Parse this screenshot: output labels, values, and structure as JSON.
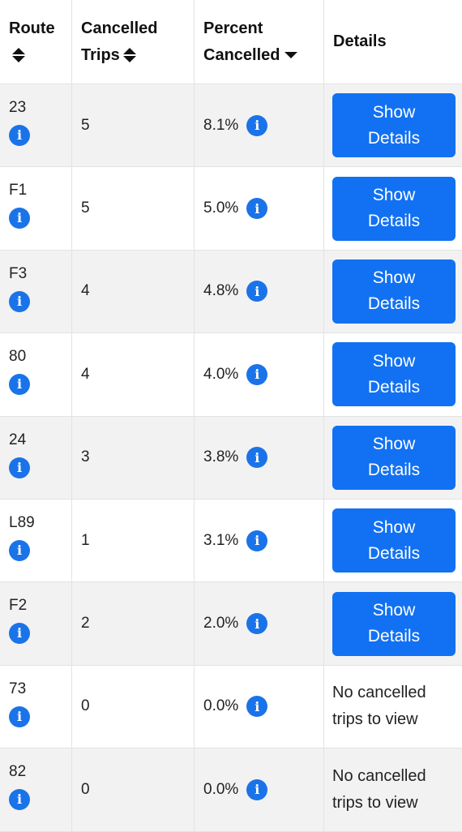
{
  "header": {
    "route": "Route",
    "cancelled_l1": "Cancelled",
    "cancelled_l2": "Trips",
    "percent_l1": "Percent",
    "percent_l2": "Cancelled",
    "details": "Details"
  },
  "button_l1": "Show",
  "button_l2": "Details",
  "no_details_l1": "No cancelled",
  "no_details_l2": "trips to view",
  "info_glyph": "i",
  "rows": [
    {
      "route": "23",
      "trips": "5",
      "pct": "8.1%"
    },
    {
      "route": "F1",
      "trips": "5",
      "pct": "5.0%"
    },
    {
      "route": "F3",
      "trips": "4",
      "pct": "4.8%"
    },
    {
      "route": "80",
      "trips": "4",
      "pct": "4.0%"
    },
    {
      "route": "24",
      "trips": "3",
      "pct": "3.8%"
    },
    {
      "route": "L89",
      "trips": "1",
      "pct": "3.1%"
    },
    {
      "route": "F2",
      "trips": "2",
      "pct": "2.0%"
    },
    {
      "route": "73",
      "trips": "0",
      "pct": "0.0%"
    },
    {
      "route": "82",
      "trips": "0",
      "pct": "0.0%"
    }
  ],
  "colors": {
    "accent": "#1271f2",
    "info": "#1a73e8",
    "stripe": "#f2f2f2"
  }
}
